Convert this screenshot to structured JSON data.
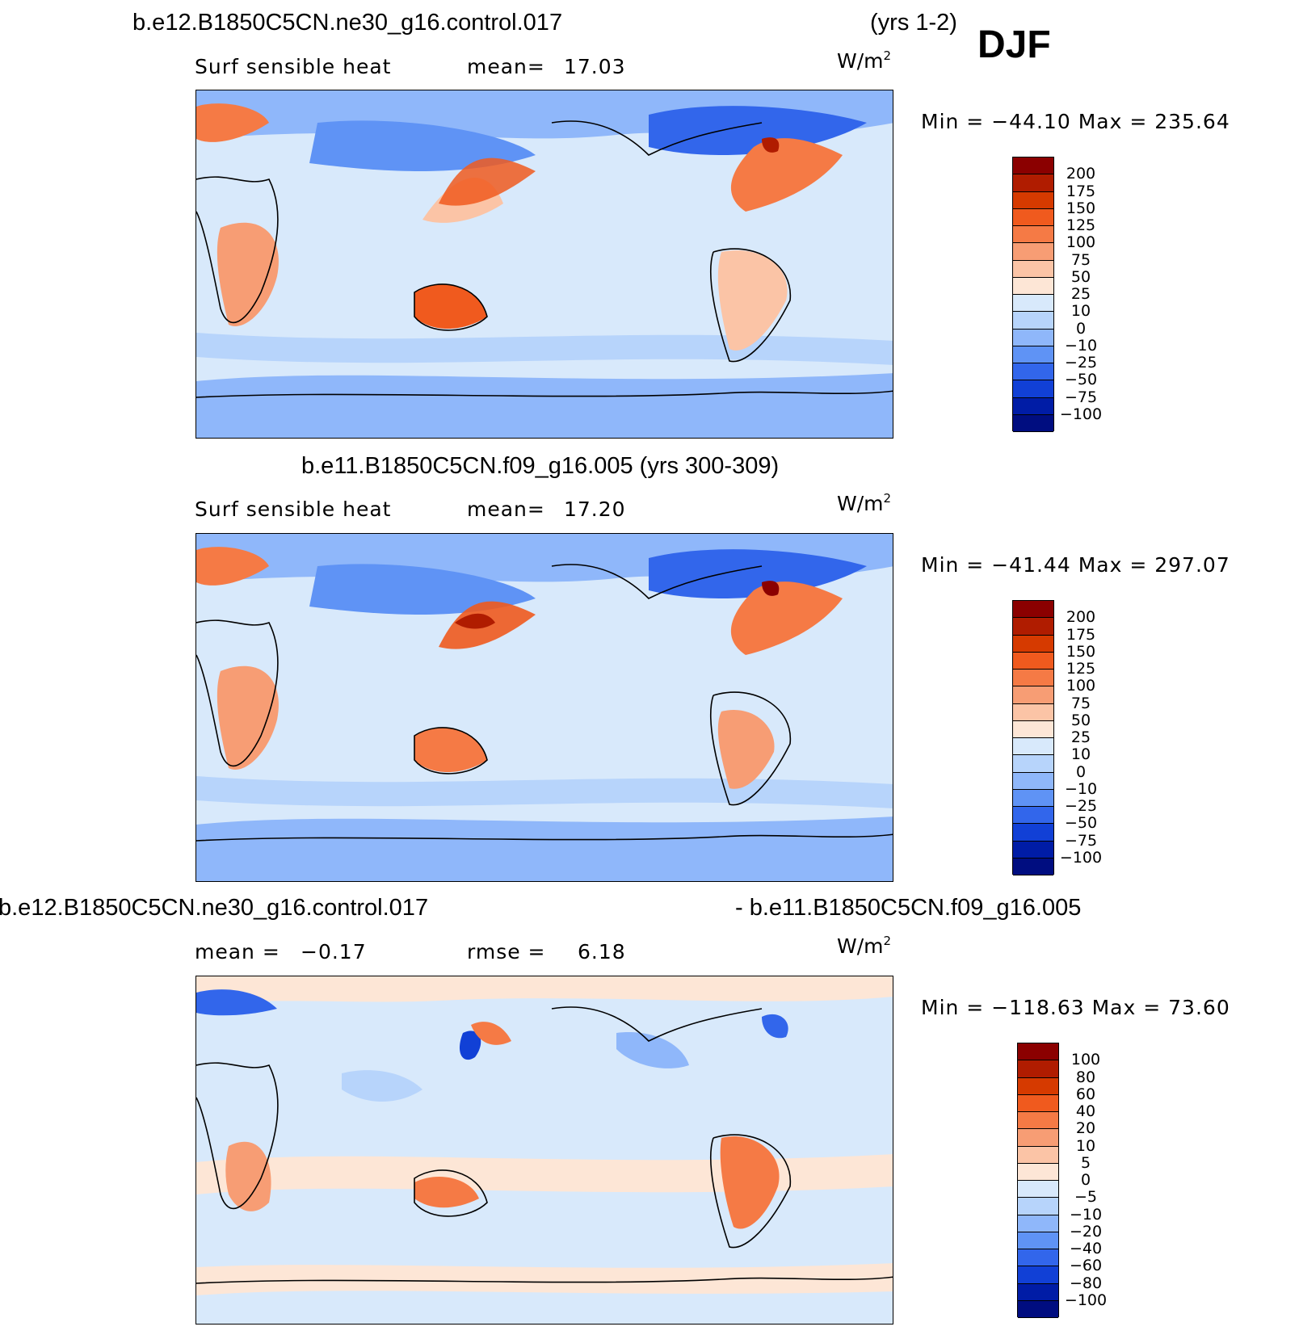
{
  "figure": {
    "season": "DJF",
    "units": "W/m",
    "units_sup": "2"
  },
  "panels": [
    {
      "case": "b.e12.B1850C5CN.ne30_g16.control.017",
      "years": "(yrs 1-2)",
      "left_label": "Surf sensible heat",
      "stat1_label": "mean=",
      "stat1_value": "17.03",
      "min_label": "Min =",
      "min_value": "−44.10",
      "max_label": "Max =",
      "max_value": "235.64"
    },
    {
      "case": "b.e11.B1850C5CN.f09_g16.005 (yrs 300-309)",
      "left_label": "Surf sensible heat",
      "stat1_label": "mean=",
      "stat1_value": "17.20",
      "min_label": "Min =",
      "min_value": "−41.44",
      "max_label": "Max =",
      "max_value": "297.07"
    },
    {
      "case_left": "b.e12.B1850C5CN.ne30_g16.control.017",
      "case_right": "- b.e11.B1850C5CN.f09_g16.005",
      "stat1_label": "mean =",
      "stat1_value": "−0.17",
      "stat2_label": "rmse =",
      "stat2_value": "6.18",
      "min_label": "Min =",
      "min_value": "−118.63",
      "max_label": "Max =",
      "max_value": "73.60"
    }
  ],
  "colorbars": {
    "field": {
      "levels": [
        "200",
        "175",
        "150",
        "125",
        "100",
        "75",
        "50",
        "25",
        "10",
        "0",
        "−10",
        "−25",
        "−50",
        "−75",
        "−100"
      ],
      "colors": [
        "#8b0000",
        "#b01c00",
        "#d63a00",
        "#f05a1e",
        "#f57a45",
        "#f79d74",
        "#fbc4a6",
        "#fde6d6",
        "#d8e9fb",
        "#b7d4fb",
        "#8fb7fa",
        "#5f93f5",
        "#3266eb",
        "#1140d6",
        "#001ca6",
        "#000d80"
      ]
    },
    "diff": {
      "levels": [
        "100",
        "80",
        "60",
        "40",
        "20",
        "10",
        "5",
        "0",
        "−5",
        "−10",
        "−20",
        "−40",
        "−60",
        "−80",
        "−100"
      ],
      "colors": [
        "#8b0000",
        "#b01c00",
        "#d63a00",
        "#f05a1e",
        "#f57a45",
        "#f79d74",
        "#fbc4a6",
        "#fde6d6",
        "#d8e9fb",
        "#b7d4fb",
        "#8fb7fa",
        "#5f93f5",
        "#3266eb",
        "#1140d6",
        "#001ca6",
        "#000d80"
      ]
    }
  }
}
